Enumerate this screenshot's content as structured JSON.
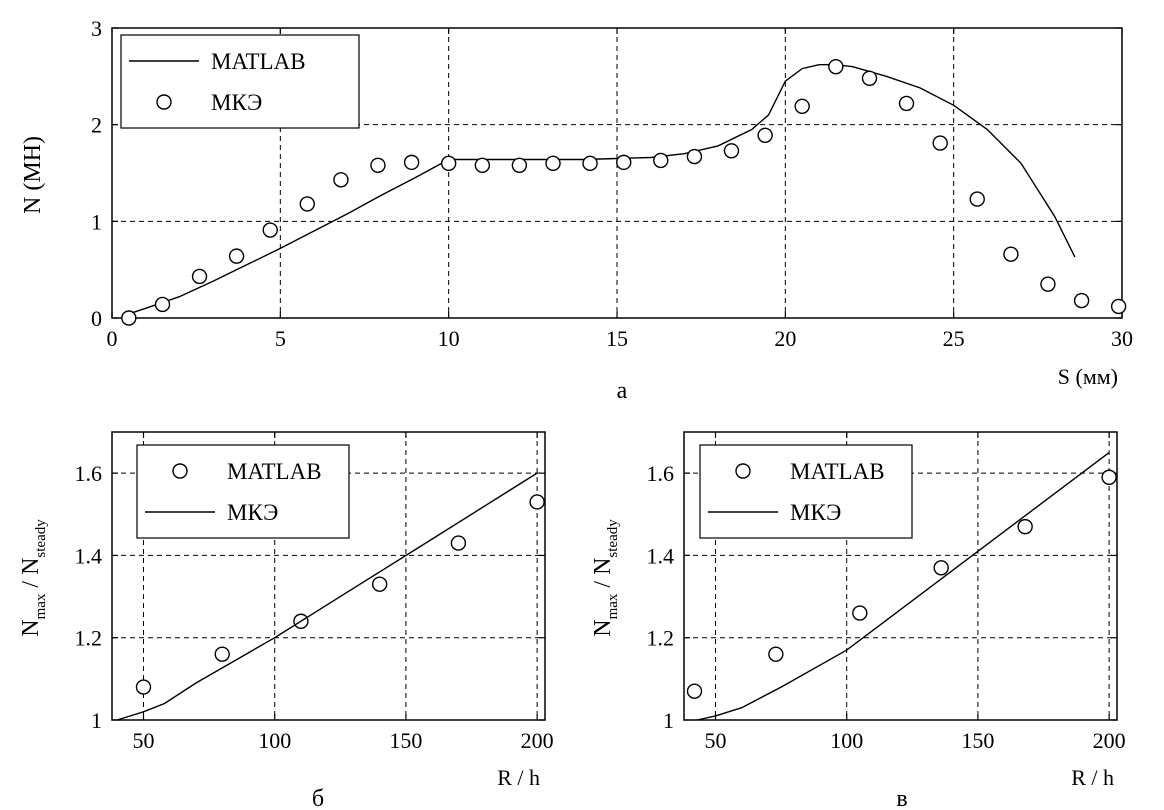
{
  "chart_data": [
    {
      "id": "a",
      "type": "line",
      "caption": "а",
      "ylabel": "N (МН)",
      "xlabel": "S (мм)",
      "xlim": [
        0,
        30
      ],
      "ylim": [
        0,
        3
      ],
      "xticks": [
        0,
        5,
        10,
        15,
        20,
        25,
        30
      ],
      "yticks": [
        0,
        1,
        2,
        3
      ],
      "grid": true,
      "legend_position": "top-left",
      "series": [
        {
          "name": "MATLAB",
          "style": "line",
          "x": [
            0.3,
            1.0,
            2.0,
            3.0,
            4.0,
            5.0,
            6.0,
            7.0,
            8.0,
            9.0,
            10.0,
            11.0,
            12.0,
            13.0,
            14.0,
            15.0,
            16.0,
            17.0,
            18.0,
            19.0,
            19.5,
            20.0,
            20.5,
            21.0,
            21.5,
            22.0,
            23.0,
            24.0,
            25.0,
            26.0,
            27.0,
            28.0,
            28.6
          ],
          "y": [
            0.02,
            0.1,
            0.22,
            0.38,
            0.55,
            0.72,
            0.9,
            1.08,
            1.27,
            1.45,
            1.64,
            1.64,
            1.64,
            1.64,
            1.64,
            1.65,
            1.66,
            1.7,
            1.78,
            1.95,
            2.1,
            2.45,
            2.58,
            2.62,
            2.62,
            2.6,
            2.5,
            2.38,
            2.2,
            1.95,
            1.6,
            1.05,
            0.63
          ]
        },
        {
          "name": "МКЭ",
          "style": "marker",
          "x": [
            0.5,
            1.5,
            2.6,
            3.7,
            4.7,
            5.8,
            6.8,
            7.9,
            8.9,
            10.0,
            11.0,
            12.1,
            13.1,
            14.2,
            15.2,
            16.3,
            17.3,
            18.4,
            19.4,
            20.5,
            21.5,
            22.5,
            23.6,
            24.6,
            25.7,
            26.7,
            27.8,
            28.8,
            29.9
          ],
          "y": [
            0.0,
            0.14,
            0.43,
            0.64,
            0.91,
            1.18,
            1.43,
            1.58,
            1.61,
            1.6,
            1.58,
            1.58,
            1.6,
            1.6,
            1.61,
            1.63,
            1.67,
            1.73,
            1.89,
            2.19,
            2.6,
            2.48,
            2.22,
            1.81,
            1.23,
            0.66,
            0.35,
            0.18,
            0.12
          ]
        }
      ]
    },
    {
      "id": "b",
      "type": "line",
      "caption": "б",
      "ylabel": "N_max / N_steady",
      "ylabel_main": "N",
      "ylabel_sub1": "max",
      "ylabel_mid": " / N",
      "ylabel_sub2": "steady",
      "xlabel": "R / h",
      "xlim": [
        38,
        203
      ],
      "ylim": [
        1,
        1.7
      ],
      "xticks": [
        50,
        100,
        150,
        200
      ],
      "yticks": [
        1,
        1.2,
        1.4,
        1.6
      ],
      "ytick_labels": [
        "1",
        "1.2",
        "1.4",
        "1.6"
      ],
      "grid": true,
      "legend_position": "top-left",
      "series": [
        {
          "name": "MATLAB",
          "style": "marker",
          "x": [
            50,
            80,
            110,
            140,
            170,
            200
          ],
          "y": [
            1.08,
            1.16,
            1.24,
            1.33,
            1.43,
            1.53
          ]
        },
        {
          "name": "МКЭ",
          "style": "line",
          "x": [
            40,
            50,
            58,
            70,
            100,
            130,
            160,
            200
          ],
          "y": [
            1.0,
            1.02,
            1.04,
            1.09,
            1.2,
            1.32,
            1.44,
            1.6
          ]
        }
      ]
    },
    {
      "id": "c",
      "type": "line",
      "caption": "в",
      "ylabel": "N_max / N_steady",
      "ylabel_main": "N",
      "ylabel_sub1": "max",
      "ylabel_mid": " / N",
      "ylabel_sub2": "steady",
      "xlabel": "R / h",
      "xlim": [
        38,
        203
      ],
      "ylim": [
        1,
        1.7
      ],
      "xticks": [
        50,
        100,
        150,
        200
      ],
      "yticks": [
        1,
        1.2,
        1.4,
        1.6
      ],
      "ytick_labels": [
        "1",
        "1.2",
        "1.4",
        "1.6"
      ],
      "grid": true,
      "legend_position": "top-left",
      "series": [
        {
          "name": "MATLAB",
          "style": "marker",
          "x": [
            42,
            73,
            105,
            136,
            168,
            200
          ],
          "y": [
            1.07,
            1.16,
            1.26,
            1.37,
            1.47,
            1.59
          ]
        },
        {
          "name": "МКЭ",
          "style": "line",
          "x": [
            43,
            50,
            60,
            75,
            100,
            125,
            150,
            175,
            200
          ],
          "y": [
            1.0,
            1.01,
            1.03,
            1.08,
            1.17,
            1.29,
            1.41,
            1.53,
            1.65
          ]
        }
      ]
    }
  ]
}
